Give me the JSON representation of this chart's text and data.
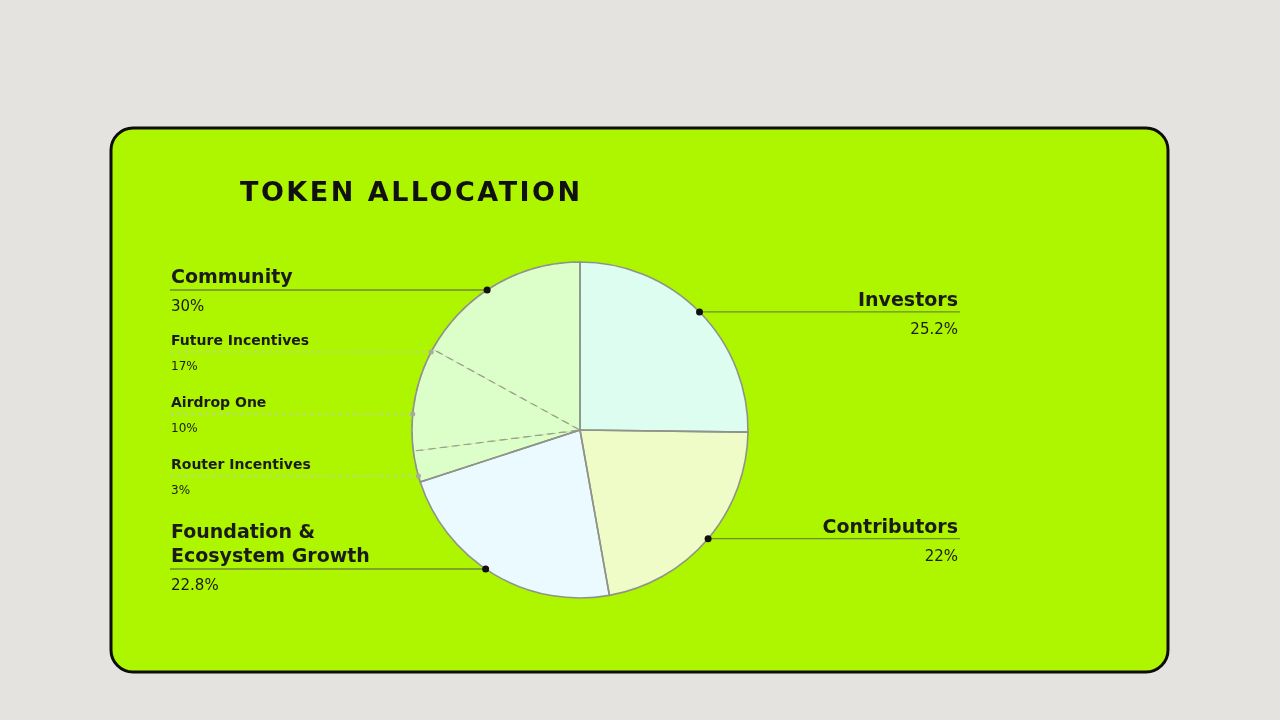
{
  "chart_data": {
    "type": "pie",
    "title": "TOKEN ALLOCATION",
    "categories": [
      "Investors",
      "Contributors",
      "Foundation & Ecosystem Growth",
      "Router Incentives",
      "Airdrop One",
      "Future Incentives"
    ],
    "values": [
      25.2,
      22,
      22.8,
      3,
      10,
      17
    ],
    "value_labels": [
      "25.2%",
      "22%",
      "22.8%",
      "3%",
      "10%",
      "17%"
    ],
    "colors": [
      "#ddfdf0",
      "#effcc8",
      "#eafaff",
      "#dcfec8",
      "#dcfec8",
      "#dcfec8"
    ],
    "annotations": [
      "Community",
      "30%"
    ]
  }
}
